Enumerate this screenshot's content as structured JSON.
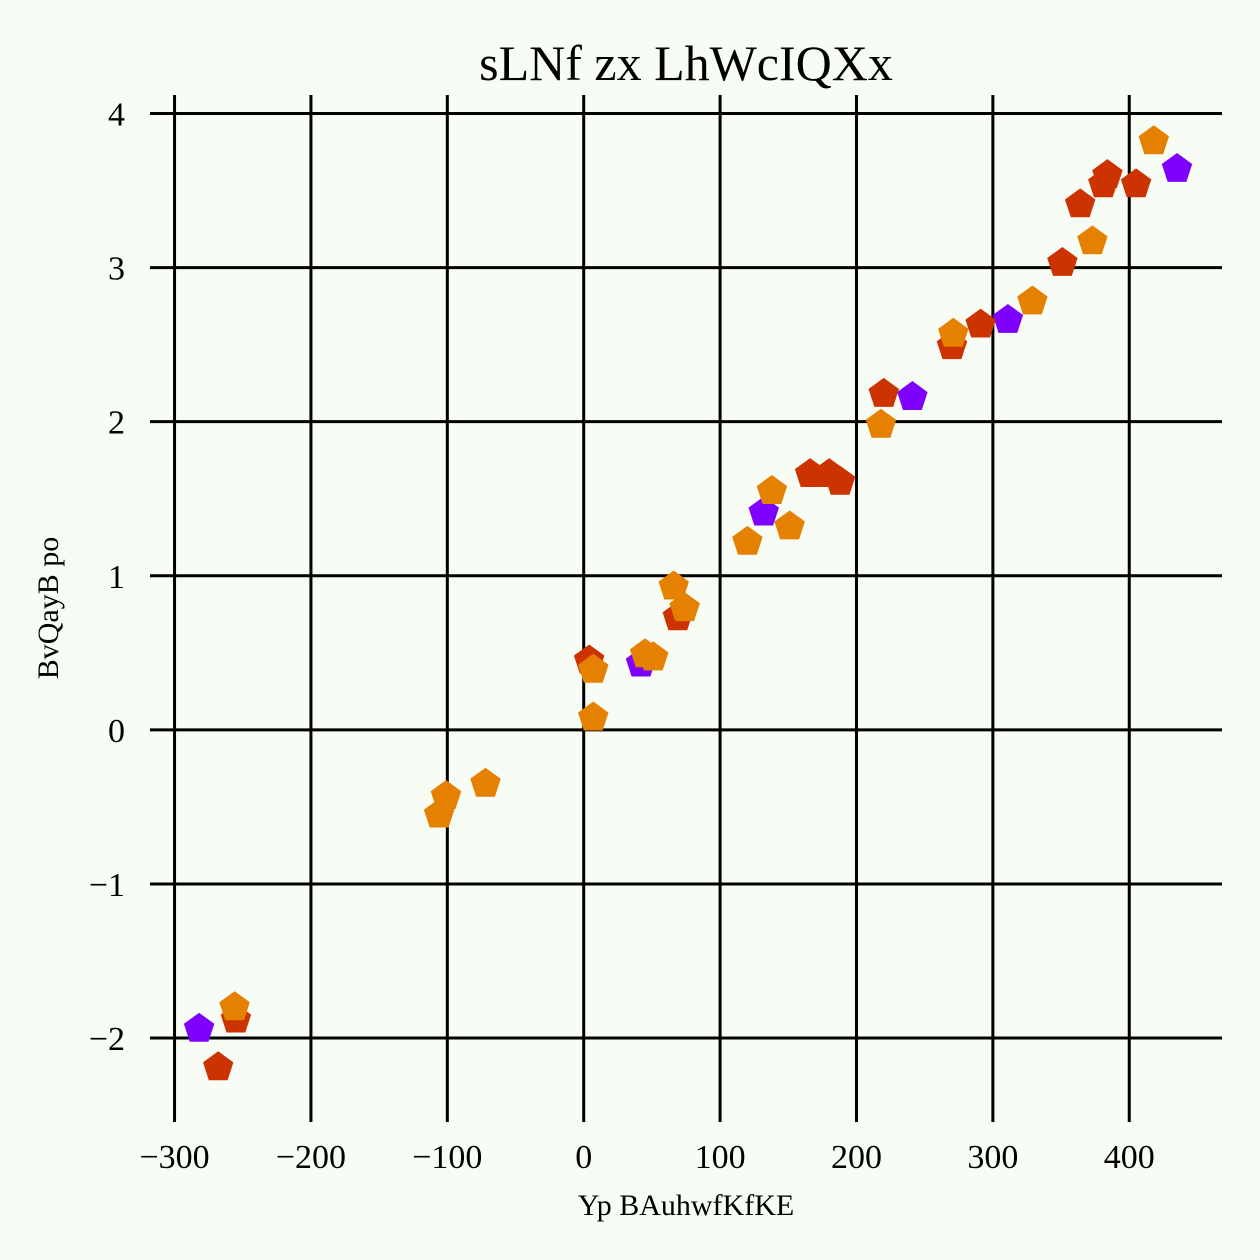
{
  "chart_data": {
    "type": "scatter",
    "title": "sLNf zx LhWcIQXx",
    "xlabel": "Yp BAuhwfKfKE",
    "ylabel": "BvQayB po",
    "xlim": [
      -318,
      468
    ],
    "ylim": [
      -2.48,
      4.12
    ],
    "xticks": [
      -300,
      -200,
      -100,
      0,
      100,
      200,
      300,
      400
    ],
    "xtick_labels": [
      "−300",
      "−200",
      "−100",
      "0",
      "100",
      "200",
      "300",
      "400"
    ],
    "yticks": [
      -2,
      -1,
      0,
      1,
      2,
      3,
      4
    ],
    "ytick_labels": [
      "−2",
      "−1",
      "0",
      "1",
      "2",
      "3",
      "4"
    ],
    "grid": true,
    "marker": "pentagon",
    "series": [
      {
        "color": "#7f00ff",
        "points": [
          [
            -282,
            -1.94
          ],
          [
            42,
            0.43
          ],
          [
            132,
            1.41
          ],
          [
            241,
            2.16
          ],
          [
            311,
            2.66
          ],
          [
            435,
            3.64
          ]
        ]
      },
      {
        "color": "#cc3300",
        "points": [
          [
            -268,
            -2.19
          ],
          [
            -255,
            -1.88
          ],
          [
            4,
            0.45
          ],
          [
            69,
            0.73
          ],
          [
            166,
            1.66
          ],
          [
            180,
            1.66
          ],
          [
            188,
            1.61
          ],
          [
            220,
            2.18
          ],
          [
            270,
            2.49
          ],
          [
            291,
            2.63
          ],
          [
            351,
            3.03
          ],
          [
            364,
            3.41
          ],
          [
            381,
            3.54
          ],
          [
            384,
            3.6
          ],
          [
            405,
            3.54
          ]
        ]
      },
      {
        "color": "#e68000",
        "points": [
          [
            -256,
            -1.8
          ],
          [
            -106,
            -0.55
          ],
          [
            -101,
            -0.43
          ],
          [
            -72,
            -0.35
          ],
          [
            7,
            0.08
          ],
          [
            7,
            0.39
          ],
          [
            45,
            0.49
          ],
          [
            51,
            0.47
          ],
          [
            66,
            0.93
          ],
          [
            74,
            0.79
          ],
          [
            120,
            1.22
          ],
          [
            138,
            1.55
          ],
          [
            151,
            1.32
          ],
          [
            218,
            1.98
          ],
          [
            271,
            2.57
          ],
          [
            329,
            2.78
          ],
          [
            373,
            3.17
          ],
          [
            418,
            3.82
          ]
        ]
      }
    ]
  }
}
